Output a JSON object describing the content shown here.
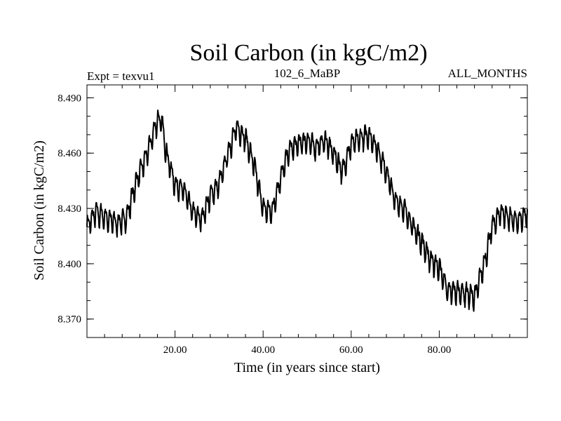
{
  "chart_data": {
    "type": "line",
    "title": "Soil Carbon (in kgC/m2)",
    "subtitle_left": "Expt = texvu1",
    "subtitle_center": "102_6_MaBP",
    "subtitle_right": "ALL_MONTHS",
    "xlabel": "Time (in years since start)",
    "ylabel": "Soil Carbon (in kgC/m2)",
    "xlim": [
      0,
      100
    ],
    "ylim": [
      8.36,
      8.497
    ],
    "xticks": [
      20,
      40,
      60,
      80
    ],
    "xtick_labels": [
      "20.00",
      "40.00",
      "60.00",
      "80.00"
    ],
    "yticks": [
      8.37,
      8.4,
      8.43,
      8.46,
      8.49
    ],
    "ytick_labels": [
      "8.370",
      "8.400",
      "8.430",
      "8.460",
      "8.490"
    ],
    "series": [
      {
        "name": "Soil Carbon",
        "color": "#000000",
        "trend": {
          "x": [
            0,
            2,
            5,
            7,
            9,
            11,
            14,
            16,
            17,
            18,
            20,
            22,
            24,
            26,
            28,
            30,
            32,
            34,
            36,
            38,
            40,
            42,
            44,
            46,
            48,
            50,
            52,
            54,
            56,
            58,
            60,
            62,
            64,
            66,
            68,
            70,
            72,
            74,
            76,
            78,
            80,
            82,
            84,
            86,
            88,
            90,
            92,
            94,
            96,
            98,
            100
          ],
          "y": [
            8.42,
            8.428,
            8.424,
            8.422,
            8.425,
            8.443,
            8.462,
            8.478,
            8.477,
            8.46,
            8.443,
            8.44,
            8.428,
            8.424,
            8.437,
            8.443,
            8.46,
            8.474,
            8.468,
            8.453,
            8.43,
            8.428,
            8.447,
            8.462,
            8.465,
            8.467,
            8.463,
            8.467,
            8.46,
            8.45,
            8.465,
            8.468,
            8.47,
            8.462,
            8.45,
            8.434,
            8.43,
            8.42,
            8.412,
            8.402,
            8.398,
            8.385,
            8.385,
            8.384,
            8.382,
            8.398,
            8.42,
            8.428,
            8.425,
            8.423,
            8.427
          ]
        },
        "noise_amplitude": 0.009
      }
    ]
  }
}
